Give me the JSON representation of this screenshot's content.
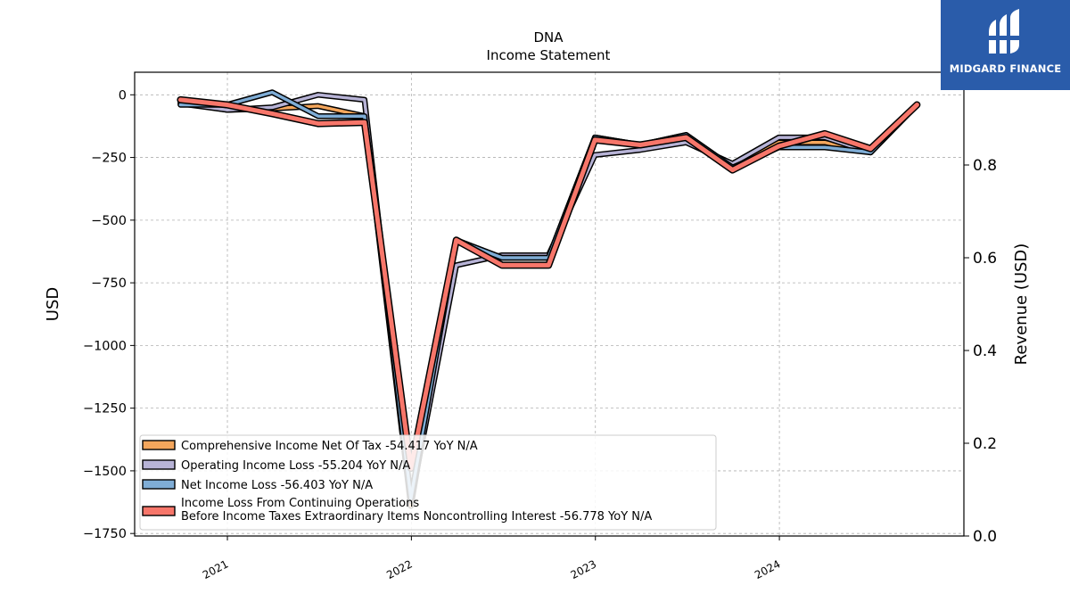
{
  "logo": {
    "text": "MIDGARD FINANCE",
    "icon": "midgard-finance-logo-icon",
    "background": "#2a5caa"
  },
  "chart_data": {
    "type": "line",
    "title": "DNA",
    "subtitle": "Income Statement",
    "ylabel": "USD",
    "y2label": "Revenue (USD)",
    "ylim": [
      -1760,
      90
    ],
    "y2lim": [
      0,
      1
    ],
    "yticks": [
      0,
      -250,
      -500,
      -750,
      -1000,
      -1250,
      -1500,
      -1750
    ],
    "ytick_labels": [
      "0",
      "−250",
      "−500",
      "−750",
      "−1000",
      "−1250",
      "−1500",
      "−1750"
    ],
    "y2ticks": [
      0.0,
      0.2,
      0.4,
      0.6,
      0.8
    ],
    "y2tick_labels": [
      "0.0",
      "0.2",
      "0.4",
      "0.6",
      "0.8"
    ],
    "xticks": [
      "2021-01-01",
      "2022-01-01",
      "2023-01-01",
      "2024-01-01"
    ],
    "xtick_labels": [
      "2021",
      "2022",
      "2023",
      "2024"
    ],
    "xlim": [
      "2020-07-01",
      "2025-01-01"
    ],
    "grid": true,
    "legend_position": "lower-left",
    "dates": [
      "2020-09-30",
      "2020-12-31",
      "2021-03-31",
      "2021-06-30",
      "2021-09-30",
      "2021-12-31",
      "2022-03-31",
      "2022-06-30",
      "2022-09-30",
      "2022-12-31",
      "2023-03-31",
      "2023-06-30",
      "2023-09-30",
      "2023-12-31",
      "2024-03-31",
      "2024-06-30",
      "2024-09-30"
    ],
    "series": [
      {
        "name": "Comprehensive Income Net Of Tax",
        "legend": "Comprehensive Income Net Of Tax  -54.417 YoY N/A",
        "color": "#f4a65c",
        "values": [
          -30,
          -60,
          -55,
          -45,
          -85,
          -1640,
          -580,
          -650,
          -650,
          -170,
          -200,
          -160,
          -290,
          -190,
          -190,
          -230,
          -40
        ]
      },
      {
        "name": "Operating Income Loss",
        "legend": "Operating Income Loss  -55.204 YoY N/A",
        "color": "#b7b3d6",
        "values": [
          -35,
          -60,
          -50,
          0,
          -20,
          -1620,
          -680,
          -640,
          -640,
          -240,
          -220,
          -190,
          -275,
          -170,
          -170,
          -230,
          -40
        ]
      },
      {
        "name": "Net Income Loss",
        "legend": "Net Income Loss  -56.403 YoY N/A",
        "color": "#7fadd6",
        "values": [
          -40,
          -40,
          10,
          -85,
          -85,
          -1610,
          -580,
          -650,
          -650,
          -170,
          -200,
          -160,
          -290,
          -210,
          -210,
          -230,
          -40
        ]
      },
      {
        "name": "Income Loss From Continuing Operations Before Income Taxes Extraordinary Items Noncontrolling Interest",
        "legend_lines": [
          "Income Loss From Continuing Operations",
          "Before Income Taxes Extraordinary Items Noncontrolling Interest  -56.778 YoY N/A"
        ],
        "color": "#f7766a",
        "values": [
          -20,
          -40,
          -75,
          -115,
          -110,
          -1490,
          -580,
          -680,
          -680,
          -180,
          -200,
          -170,
          -300,
          -205,
          -155,
          -215,
          -40
        ]
      }
    ]
  }
}
